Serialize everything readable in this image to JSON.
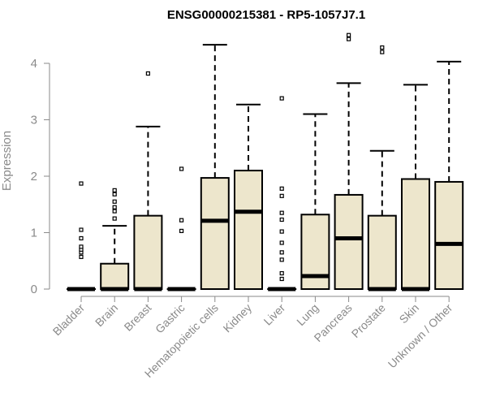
{
  "chart_data": {
    "type": "box",
    "title": "ENSG00000215381 - RP5-1057J7.1",
    "xlabel": "",
    "ylabel": "Expression",
    "ylim": [
      0,
      4.5
    ],
    "yticks": [
      0,
      1,
      2,
      3,
      4
    ],
    "grid": false,
    "colors": {
      "box_fill": "#ede6cc",
      "stroke": "#000000",
      "axis": "#8a8a8a",
      "tick_text": "#8a8a8a"
    },
    "categories": [
      "Bladder",
      "Brain",
      "Breast",
      "Gastric",
      "Hematopoietic cells",
      "Kidney",
      "Liver",
      "Lung",
      "Pancreas",
      "Prostate",
      "Skin",
      "Unknown / Other"
    ],
    "boxes": [
      {
        "category": "Bladder",
        "min": 0,
        "q1": 0,
        "median": 0,
        "q3": 0,
        "max": 0,
        "outliers": [
          0.57,
          0.65,
          0.7,
          0.75,
          0.9,
          1.05,
          1.87
        ]
      },
      {
        "category": "Brain",
        "min": 0,
        "q1": 0,
        "median": 0,
        "q3": 0.45,
        "max": 1.12,
        "outliers": [
          1.25,
          1.38,
          1.45,
          1.55,
          1.68,
          1.75
        ]
      },
      {
        "category": "Breast",
        "min": 0,
        "q1": 0,
        "median": 0,
        "q3": 1.3,
        "max": 2.88,
        "outliers": [
          3.82
        ]
      },
      {
        "category": "Gastric",
        "min": 0,
        "q1": 0,
        "median": 0,
        "q3": 0,
        "max": 0,
        "outliers": [
          1.03,
          1.22,
          2.13
        ]
      },
      {
        "category": "Hematopoietic cells",
        "min": 0,
        "q1": 0,
        "median": 1.21,
        "q3": 1.97,
        "max": 4.33,
        "outliers": []
      },
      {
        "category": "Kidney",
        "min": 0,
        "q1": 0,
        "median": 1.37,
        "q3": 2.1,
        "max": 3.27,
        "outliers": []
      },
      {
        "category": "Liver",
        "min": 0,
        "q1": 0,
        "median": 0,
        "q3": 0,
        "max": 0,
        "outliers": [
          0.18,
          0.28,
          0.52,
          0.65,
          0.82,
          1.02,
          1.23,
          1.35,
          1.65,
          1.78,
          3.38
        ]
      },
      {
        "category": "Lung",
        "min": 0,
        "q1": 0,
        "median": 0.23,
        "q3": 1.32,
        "max": 3.1,
        "outliers": []
      },
      {
        "category": "Pancreas",
        "min": 0,
        "q1": 0,
        "median": 0.9,
        "q3": 1.67,
        "max": 3.65,
        "outliers": [
          4.43,
          4.5
        ]
      },
      {
        "category": "Prostate",
        "min": 0,
        "q1": 0,
        "median": 0,
        "q3": 1.3,
        "max": 2.45,
        "outliers": [
          4.2,
          4.28
        ]
      },
      {
        "category": "Skin",
        "min": 0,
        "q1": 0,
        "median": 0,
        "q3": 1.95,
        "max": 3.62,
        "outliers": []
      },
      {
        "category": "Unknown / Other",
        "min": 0,
        "q1": 0,
        "median": 0.8,
        "q3": 1.9,
        "max": 4.03,
        "outliers": []
      }
    ]
  }
}
